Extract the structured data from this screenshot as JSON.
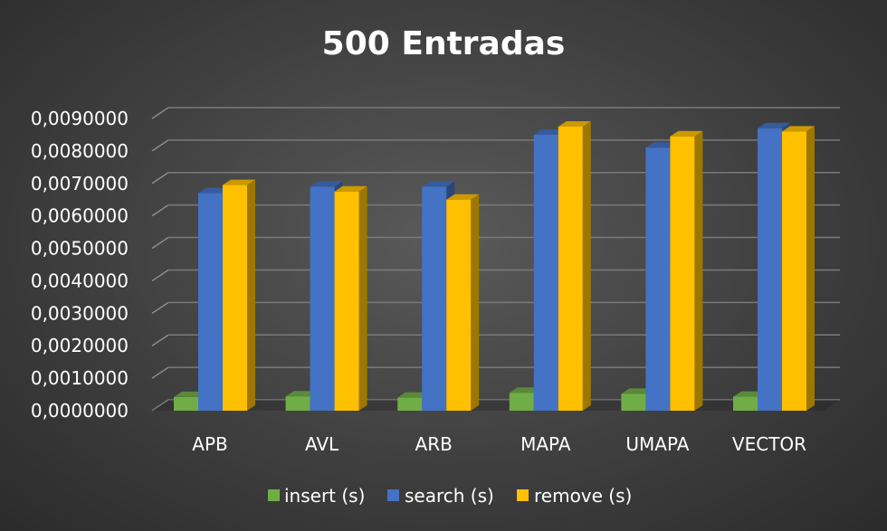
{
  "chart_data": {
    "type": "bar",
    "title": "500 Entradas",
    "xlabel": "",
    "ylabel": "",
    "categories": [
      "APB",
      "AVL",
      "ARB",
      "MAPA",
      "UMAPA",
      "VECTOR"
    ],
    "series": [
      {
        "name": "insert (s)",
        "values": [
          0.00042,
          0.00044,
          0.0004,
          0.00055,
          0.00052,
          0.00043
        ]
      },
      {
        "name": "search (s)",
        "values": [
          0.0067,
          0.0069,
          0.0069,
          0.0085,
          0.0081,
          0.0087
        ]
      },
      {
        "name": "remove (s)",
        "values": [
          0.00695,
          0.00675,
          0.0065,
          0.00875,
          0.00845,
          0.0086
        ]
      }
    ],
    "ylim": [
      0,
      0.009
    ],
    "yticks": [
      "0,0000000",
      "0,0010000",
      "0,0020000",
      "0,0030000",
      "0,0040000",
      "0,0050000",
      "0,0060000",
      "0,0070000",
      "0,0080000",
      "0,0090000"
    ],
    "grid": true,
    "legend_position": "bottom",
    "colors": {
      "insert (s)": "#70ad47",
      "search (s)": "#4472c4",
      "remove (s)": "#ffc000"
    }
  }
}
